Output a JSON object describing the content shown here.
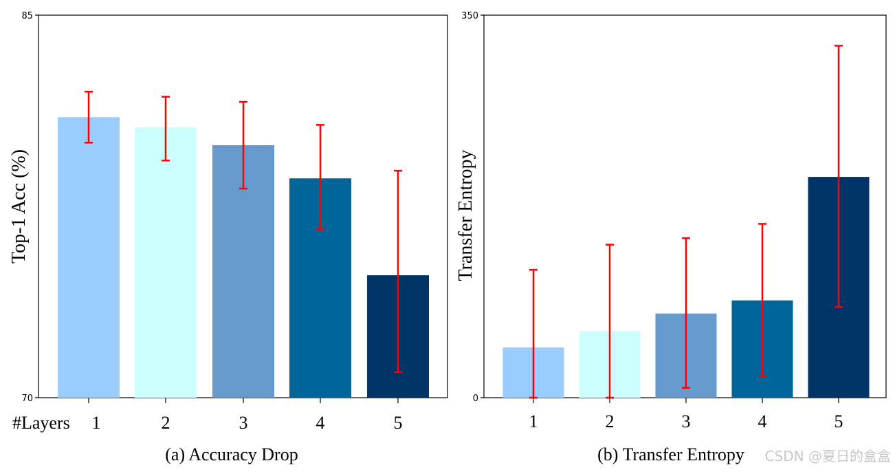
{
  "chart_data": [
    {
      "type": "bar",
      "title": "",
      "caption": "(a) Accuracy Drop",
      "xlabel": "#Layers",
      "ylabel": "Top-1 Acc (%)",
      "categories": [
        "1",
        "2",
        "3",
        "4",
        "5"
      ],
      "values": [
        81.0,
        80.6,
        79.9,
        78.6,
        74.8
      ],
      "error_low": [
        80.0,
        79.3,
        78.2,
        76.6,
        71.0
      ],
      "error_high": [
        82.0,
        81.8,
        81.6,
        80.7,
        78.9
      ],
      "colors": [
        "#99CCFF",
        "#CCFFFF",
        "#6699CC",
        "#006699",
        "#003366"
      ],
      "error_color": "#FF0000",
      "ylim": [
        70,
        85
      ],
      "ytick_labels": [
        "70",
        "85"
      ]
    },
    {
      "type": "bar",
      "title": "",
      "caption": "(b) Transfer Entropy",
      "xlabel": "",
      "ylabel": "Transfer Entropy",
      "categories": [
        "1",
        "2",
        "3",
        "4",
        "5"
      ],
      "values": [
        46,
        61,
        77,
        89,
        202
      ],
      "error_low": [
        0,
        0,
        9,
        20,
        83
      ],
      "error_high": [
        117,
        140,
        146,
        159,
        322
      ],
      "colors": [
        "#99CCFF",
        "#CCFFFF",
        "#6699CC",
        "#006699",
        "#003366"
      ],
      "error_color": "#FF0000",
      "ylim": [
        0,
        350
      ],
      "ytick_labels": [
        "0",
        "350"
      ]
    }
  ],
  "watermark": "CSDN @夏日的盒盒"
}
